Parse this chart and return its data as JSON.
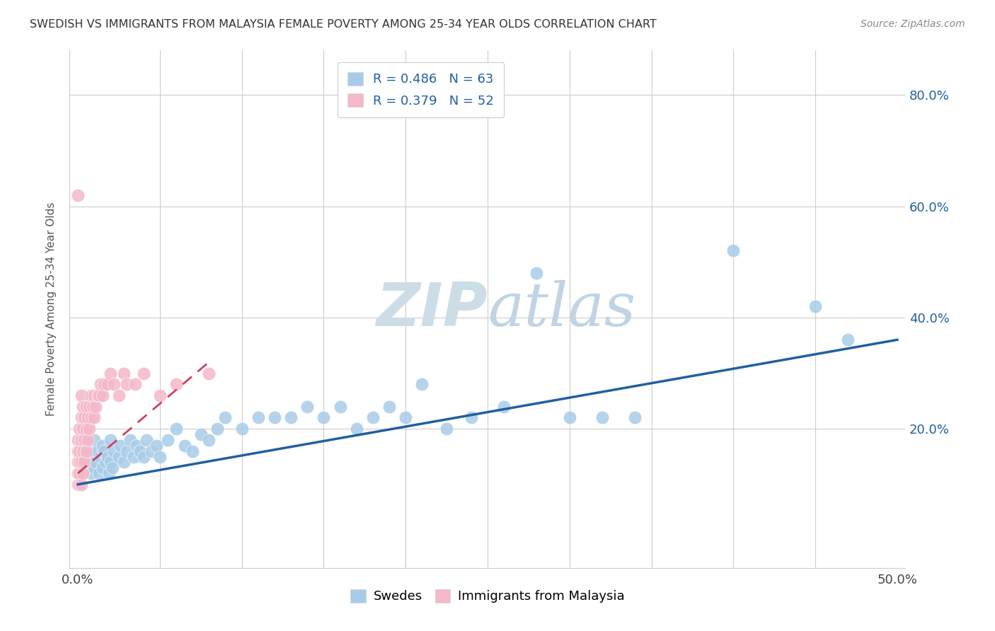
{
  "title": "SWEDISH VS IMMIGRANTS FROM MALAYSIA FEMALE POVERTY AMONG 25-34 YEAR OLDS CORRELATION CHART",
  "source": "Source: ZipAtlas.com",
  "ylabel": "Female Poverty Among 25-34 Year Olds",
  "xlim": [
    -0.005,
    0.505
  ],
  "ylim": [
    -0.05,
    0.88
  ],
  "xtick_pos": [
    0.0,
    0.05,
    0.1,
    0.15,
    0.2,
    0.25,
    0.3,
    0.35,
    0.4,
    0.45,
    0.5
  ],
  "xtick_labels": [
    "0.0%",
    "",
    "",
    "",
    "",
    "",
    "",
    "",
    "",
    "",
    "50.0%"
  ],
  "ytick_pos": [
    0.0,
    0.2,
    0.4,
    0.6,
    0.8
  ],
  "ytick_labels": [
    "",
    "20.0%",
    "40.0%",
    "60.0%",
    "80.0%"
  ],
  "swedes_R": 0.486,
  "swedes_N": 63,
  "malaysia_R": 0.379,
  "malaysia_N": 52,
  "blue_color": "#a8cce8",
  "pink_color": "#f4b8c8",
  "blue_line_color": "#2060a0",
  "pink_line_color": "#d04060",
  "legend_R_color": "#2060a0",
  "legend_N_color": "#2060a0",
  "watermark_main_color": "#c8d8e8",
  "axis_color": "#cccccc",
  "swedes_x": [
    0.005,
    0.007,
    0.008,
    0.009,
    0.01,
    0.01,
    0.011,
    0.012,
    0.013,
    0.014,
    0.015,
    0.015,
    0.016,
    0.017,
    0.018,
    0.019,
    0.02,
    0.02,
    0.021,
    0.022,
    0.025,
    0.026,
    0.028,
    0.03,
    0.032,
    0.034,
    0.036,
    0.038,
    0.04,
    0.042,
    0.045,
    0.048,
    0.05,
    0.055,
    0.06,
    0.065,
    0.07,
    0.075,
    0.08,
    0.085,
    0.09,
    0.1,
    0.11,
    0.12,
    0.13,
    0.14,
    0.15,
    0.16,
    0.17,
    0.18,
    0.19,
    0.2,
    0.21,
    0.225,
    0.24,
    0.26,
    0.28,
    0.3,
    0.32,
    0.34,
    0.4,
    0.45,
    0.47
  ],
  "swedes_y": [
    0.14,
    0.16,
    0.12,
    0.15,
    0.18,
    0.13,
    0.14,
    0.16,
    0.12,
    0.15,
    0.17,
    0.13,
    0.16,
    0.14,
    0.15,
    0.12,
    0.14,
    0.18,
    0.13,
    0.16,
    0.15,
    0.17,
    0.14,
    0.16,
    0.18,
    0.15,
    0.17,
    0.16,
    0.15,
    0.18,
    0.16,
    0.17,
    0.15,
    0.18,
    0.2,
    0.17,
    0.16,
    0.19,
    0.18,
    0.2,
    0.22,
    0.2,
    0.22,
    0.22,
    0.22,
    0.24,
    0.22,
    0.24,
    0.2,
    0.22,
    0.24,
    0.22,
    0.28,
    0.2,
    0.22,
    0.24,
    0.48,
    0.22,
    0.22,
    0.22,
    0.52,
    0.42,
    0.36
  ],
  "malaysia_x": [
    0.0,
    0.0,
    0.0,
    0.0,
    0.0,
    0.001,
    0.001,
    0.001,
    0.001,
    0.001,
    0.002,
    0.002,
    0.002,
    0.002,
    0.002,
    0.003,
    0.003,
    0.003,
    0.003,
    0.004,
    0.004,
    0.004,
    0.005,
    0.005,
    0.005,
    0.006,
    0.006,
    0.007,
    0.007,
    0.008,
    0.008,
    0.009,
    0.01,
    0.01,
    0.011,
    0.012,
    0.013,
    0.014,
    0.015,
    0.016,
    0.018,
    0.02,
    0.022,
    0.025,
    0.028,
    0.03,
    0.035,
    0.04,
    0.05,
    0.06,
    0.08,
    0.0
  ],
  "malaysia_y": [
    0.1,
    0.12,
    0.14,
    0.16,
    0.18,
    0.1,
    0.12,
    0.14,
    0.16,
    0.2,
    0.1,
    0.14,
    0.18,
    0.22,
    0.26,
    0.12,
    0.16,
    0.2,
    0.24,
    0.14,
    0.18,
    0.22,
    0.16,
    0.2,
    0.24,
    0.18,
    0.22,
    0.2,
    0.24,
    0.22,
    0.26,
    0.24,
    0.22,
    0.26,
    0.24,
    0.26,
    0.26,
    0.28,
    0.26,
    0.28,
    0.28,
    0.3,
    0.28,
    0.26,
    0.3,
    0.28,
    0.28,
    0.3,
    0.26,
    0.28,
    0.3,
    0.62
  ],
  "sw_line_x": [
    0.0,
    0.5
  ],
  "sw_line_y": [
    0.1,
    0.36
  ],
  "ml_line_x": [
    0.0,
    0.08
  ],
  "ml_line_y": [
    0.12,
    0.32
  ]
}
